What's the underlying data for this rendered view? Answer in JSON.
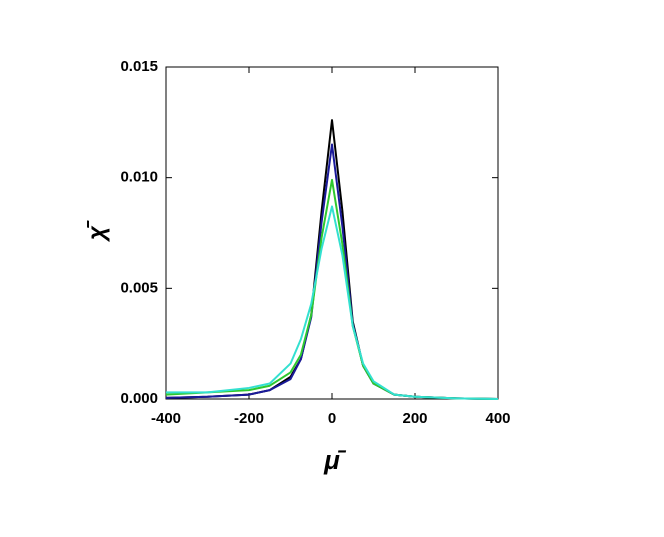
{
  "chart_data": {
    "type": "line",
    "x_label": "μ̄",
    "y_label": "χ̄",
    "x": [
      -400,
      -300,
      -200,
      -150,
      -100,
      -75,
      -50,
      -25,
      0,
      25,
      50,
      75,
      100,
      150,
      200,
      300,
      400
    ],
    "series": [
      {
        "color": "#000000",
        "values": [
          5e-05,
          0.0001,
          0.0002,
          0.0004,
          0.001,
          0.0018,
          0.0038,
          0.0085,
          0.0126,
          0.0085,
          0.0035,
          0.0015,
          0.0007,
          0.0002,
          0.0001,
          3e-05,
          0
        ]
      },
      {
        "color": "#1a1a9a",
        "values": [
          5e-05,
          0.0001,
          0.0002,
          0.0004,
          0.0009,
          0.0018,
          0.0037,
          0.008,
          0.0115,
          0.0078,
          0.0034,
          0.0015,
          0.0007,
          0.0002,
          0.0001,
          3e-05,
          0
        ]
      },
      {
        "color": "#2ec82e",
        "values": [
          0.0002,
          0.0003,
          0.0004,
          0.0006,
          0.0012,
          0.002,
          0.0038,
          0.0073,
          0.0099,
          0.007,
          0.0033,
          0.0015,
          0.0007,
          0.0002,
          0.0001,
          3e-05,
          0
        ]
      },
      {
        "color": "#33e0d0",
        "values": [
          0.0003,
          0.0003,
          0.0005,
          0.0007,
          0.0016,
          0.0027,
          0.0043,
          0.0068,
          0.0087,
          0.0065,
          0.0033,
          0.0016,
          0.0008,
          0.0002,
          0.0001,
          3e-05,
          0
        ]
      }
    ],
    "xlim": [
      -400,
      400
    ],
    "xticks": [
      -400,
      -200,
      0,
      200,
      400
    ],
    "ylim": [
      0,
      0.015
    ],
    "yticks": [
      {
        "value": 0,
        "label": "0.000"
      },
      {
        "value": 0.005,
        "label": "0.005"
      },
      {
        "value": 0.01,
        "label": "0.010"
      },
      {
        "value": 0.015,
        "label": "0.015"
      }
    ]
  }
}
